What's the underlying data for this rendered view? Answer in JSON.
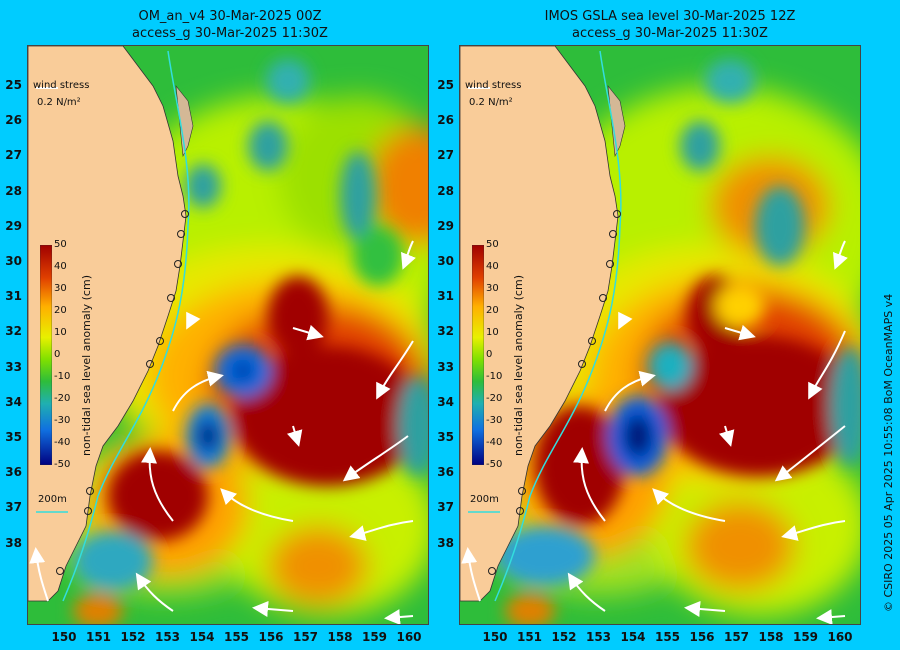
{
  "panels": [
    {
      "title_line1": "OM_an_v4  30-Mar-2025 00Z",
      "title_line2": "access_g 30-Mar-2025 11:30Z"
    },
    {
      "title_line1": "IMOS GSLA sea level  30-Mar-2025 12Z",
      "title_line2": "access_g 30-Mar-2025 11:30Z"
    }
  ],
  "wind_stress_label": "wind stress",
  "wind_stress_scale": "0.2 N/m²",
  "isobath_label": "200m",
  "colorbar": {
    "title": "non-tidal sea level anomaly (cm)",
    "ticks": [
      "50",
      "40",
      "30",
      "20",
      "10",
      "0",
      "-10",
      "-20",
      "-30",
      "-40",
      "-50"
    ]
  },
  "lat_labels": [
    "25",
    "26",
    "27",
    "28",
    "29",
    "30",
    "31",
    "32",
    "33",
    "34",
    "35",
    "36",
    "37",
    "38"
  ],
  "lon_labels": [
    "150",
    "151",
    "152",
    "153",
    "154",
    "155",
    "156",
    "157",
    "158",
    "159",
    "160"
  ],
  "credit": "© CSIRO 2025   05 Apr 2025 10:55:08 BoM OceanMAPS v4",
  "colors": {
    "background": "#00ccff",
    "land": "#f9cc99",
    "isobath": "#33dddd",
    "high_anomaly": "#a00000",
    "low_anomaly": "#000080"
  }
}
